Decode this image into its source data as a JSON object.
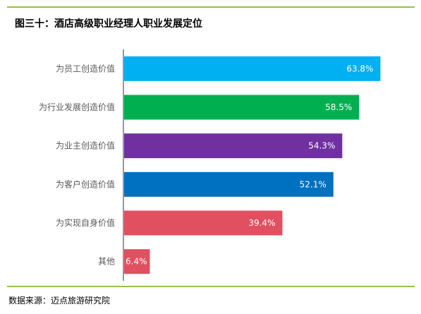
{
  "title": "图三十：酒店高级职业经理人职业发展定位",
  "source": "数据来源：迈点旅游研究院",
  "colors": {
    "rule": "#8fc34a",
    "axis": "#555555",
    "category_label": "#595959",
    "value_label": "#ffffff"
  },
  "chart_data": {
    "type": "bar",
    "orientation": "horizontal",
    "title": "图三十：酒店高级职业经理人职业发展定位",
    "categories": [
      "为员工创造价值",
      "为行业发展创造价值",
      "为业主创造价值",
      "为客户创造价值",
      "为实现自身价值",
      "其他"
    ],
    "values": [
      63.8,
      58.5,
      54.3,
      52.1,
      39.4,
      6.4
    ],
    "value_labels": [
      "63.8%",
      "58.5%",
      "54.3%",
      "52.1%",
      "39.4%",
      "6.4%"
    ],
    "bar_colors": [
      "#00b0f0",
      "#00b050",
      "#7030a0",
      "#0070c0",
      "#e05060",
      "#e05060"
    ],
    "xlim": [
      0,
      66
    ],
    "unit": "%",
    "grid": false,
    "legend": "none"
  }
}
